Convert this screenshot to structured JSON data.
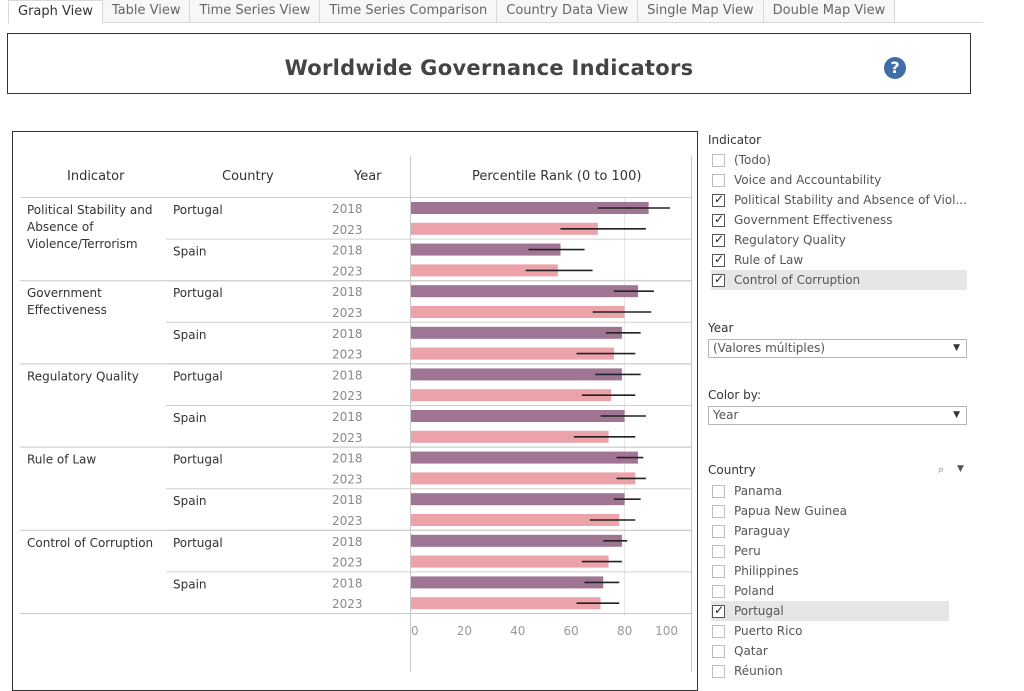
{
  "tabs": [
    "Graph View",
    "Table View",
    "Time Series View",
    "Time Series Comparison",
    "Country Data View",
    "Single Map View",
    "Double Map View"
  ],
  "title": "Worldwide Governance Indicators",
  "help_glyph": "?",
  "columns": {
    "indicator": "Indicator",
    "country": "Country",
    "year": "Year",
    "measure": "Percentile Rank (0 to 100)"
  },
  "colors": {
    "y2018": "#a07594",
    "y2023": "#eba3a9",
    "error_bar": "#222222"
  },
  "chart_data": {
    "type": "bar",
    "orientation": "horizontal",
    "xlabel": "Percentile Rank (0 to 100)",
    "xlim": [
      0,
      100
    ],
    "ticks": [
      "0",
      "20",
      "40",
      "60",
      "80",
      "100"
    ],
    "groups": [
      {
        "indicator": "Political Stability and Absence of Violence/Terrorism",
        "indicator_lines": [
          "Political Stability and",
          "Absence of",
          "Violence/Terrorism"
        ],
        "countries": [
          {
            "country": "Portugal",
            "rows": [
              {
                "year": "2018",
                "value": 89,
                "low": 70,
                "high": 97
              },
              {
                "year": "2023",
                "value": 70,
                "low": 56,
                "high": 88
              }
            ]
          },
          {
            "country": "Spain",
            "rows": [
              {
                "year": "2018",
                "value": 56,
                "low": 44,
                "high": 65
              },
              {
                "year": "2023",
                "value": 55,
                "low": 43,
                "high": 68
              }
            ]
          }
        ]
      },
      {
        "indicator": "Government Effectiveness",
        "indicator_lines": [
          "Government",
          "Effectiveness"
        ],
        "countries": [
          {
            "country": "Portugal",
            "rows": [
              {
                "year": "2018",
                "value": 85,
                "low": 76,
                "high": 91
              },
              {
                "year": "2023",
                "value": 80,
                "low": 68,
                "high": 90
              }
            ]
          },
          {
            "country": "Spain",
            "rows": [
              {
                "year": "2018",
                "value": 79,
                "low": 73,
                "high": 86
              },
              {
                "year": "2023",
                "value": 76,
                "low": 62,
                "high": 84
              }
            ]
          }
        ]
      },
      {
        "indicator": "Regulatory Quality",
        "indicator_lines": [
          "Regulatory Quality"
        ],
        "countries": [
          {
            "country": "Portugal",
            "rows": [
              {
                "year": "2018",
                "value": 79,
                "low": 69,
                "high": 86
              },
              {
                "year": "2023",
                "value": 75,
                "low": 64,
                "high": 84
              }
            ]
          },
          {
            "country": "Spain",
            "rows": [
              {
                "year": "2018",
                "value": 80,
                "low": 71,
                "high": 88
              },
              {
                "year": "2023",
                "value": 74,
                "low": 61,
                "high": 84
              }
            ]
          }
        ]
      },
      {
        "indicator": "Rule of Law",
        "indicator_lines": [
          "Rule of Law"
        ],
        "countries": [
          {
            "country": "Portugal",
            "rows": [
              {
                "year": "2018",
                "value": 85,
                "low": 77,
                "high": 87
              },
              {
                "year": "2023",
                "value": 84,
                "low": 77,
                "high": 88
              }
            ]
          },
          {
            "country": "Spain",
            "rows": [
              {
                "year": "2018",
                "value": 80,
                "low": 76,
                "high": 86
              },
              {
                "year": "2023",
                "value": 78,
                "low": 67,
                "high": 84
              }
            ]
          }
        ]
      },
      {
        "indicator": "Control of Corruption",
        "indicator_lines": [
          "Control of Corruption"
        ],
        "countries": [
          {
            "country": "Portugal",
            "rows": [
              {
                "year": "2018",
                "value": 79,
                "low": 72,
                "high": 81
              },
              {
                "year": "2023",
                "value": 74,
                "low": 64,
                "high": 79
              }
            ]
          },
          {
            "country": "Spain",
            "rows": [
              {
                "year": "2018",
                "value": 72,
                "low": 65,
                "high": 78
              },
              {
                "year": "2023",
                "value": 71,
                "low": 62,
                "high": 78
              }
            ]
          }
        ]
      }
    ]
  },
  "filters": {
    "indicator": {
      "label": "Indicator",
      "items": [
        {
          "label": "(Todo)",
          "checked": false
        },
        {
          "label": "Voice and Accountability",
          "checked": false
        },
        {
          "label": "Political Stability and Absence of Viol...",
          "checked": true
        },
        {
          "label": "Government Effectiveness",
          "checked": true
        },
        {
          "label": "Regulatory Quality",
          "checked": true
        },
        {
          "label": "Rule of Law",
          "checked": true
        },
        {
          "label": "Control of Corruption",
          "checked": true
        }
      ]
    },
    "year": {
      "label": "Year",
      "value": "(Valores múltiples)"
    },
    "color_by": {
      "label": "Color by:",
      "value": "Year"
    },
    "country": {
      "label": "Country",
      "items": [
        {
          "label": "Panama",
          "checked": false
        },
        {
          "label": "Papua New Guinea",
          "checked": false
        },
        {
          "label": "Paraguay",
          "checked": false
        },
        {
          "label": "Peru",
          "checked": false
        },
        {
          "label": "Philippines",
          "checked": false
        },
        {
          "label": "Poland",
          "checked": false
        },
        {
          "label": "Portugal",
          "checked": true
        },
        {
          "label": "Puerto Rico",
          "checked": false
        },
        {
          "label": "Qatar",
          "checked": false
        },
        {
          "label": "Réunion",
          "checked": false
        }
      ]
    }
  }
}
